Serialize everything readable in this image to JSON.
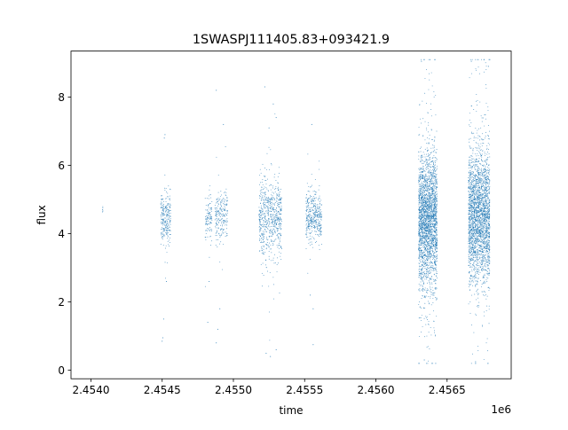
{
  "chart_data": {
    "type": "scatter",
    "title": "1SWASPJ111405.83+093421.9",
    "xlabel": "time",
    "ylabel": "flux",
    "x_offset_label": "1e6",
    "x_ticks": [
      {
        "value": 2454000,
        "label": "2.4540"
      },
      {
        "value": 2454500,
        "label": "2.4545"
      },
      {
        "value": 2455000,
        "label": "2.4550"
      },
      {
        "value": 2455500,
        "label": "2.4555"
      },
      {
        "value": 2456000,
        "label": "2.4560"
      },
      {
        "value": 2456500,
        "label": "2.4565"
      }
    ],
    "y_ticks": [
      {
        "value": 0,
        "label": "0"
      },
      {
        "value": 2,
        "label": "2"
      },
      {
        "value": 4,
        "label": "4"
      },
      {
        "value": 6,
        "label": "6"
      },
      {
        "value": 8,
        "label": "8"
      }
    ],
    "xlim": [
      2453860,
      2456950
    ],
    "ylim": [
      -0.25,
      9.35
    ],
    "grid": false,
    "marker_color": "#1f77b4",
    "series": [
      {
        "clusters": [
          {
            "x": [
              2454080,
              2454085
            ],
            "center": 4.68,
            "spread": 0.08,
            "min": 4.55,
            "max": 4.8,
            "count": 6,
            "outliers": []
          },
          {
            "x": [
              2454490,
              2454560
            ],
            "center": 4.45,
            "spread": 0.38,
            "min": 0.8,
            "max": 7.0,
            "count": 260,
            "outliers": [
              [
                2454520,
                6.9
              ],
              [
                2454515,
                6.8
              ],
              [
                2454510,
                1.5
              ],
              [
                2454505,
                0.95
              ],
              [
                2454500,
                0.85
              ],
              [
                2454530,
                2.6
              ]
            ]
          },
          {
            "x": [
              2454800,
              2454850
            ],
            "center": 4.45,
            "spread": 0.3,
            "min": 1.3,
            "max": 5.4,
            "count": 110,
            "outliers": [
              [
                2454830,
                2.6
              ],
              [
                2454820,
                1.4
              ]
            ]
          },
          {
            "x": [
              2454870,
              2454960
            ],
            "center": 4.5,
            "spread": 0.33,
            "min": 0.8,
            "max": 8.2,
            "count": 220,
            "outliers": [
              [
                2454880,
                8.2
              ],
              [
                2454930,
                7.2
              ],
              [
                2454905,
                1.8
              ],
              [
                2454880,
                0.8
              ],
              [
                2454890,
                1.2
              ]
            ]
          },
          {
            "x": [
              2455180,
              2455340
            ],
            "center": 4.45,
            "spread": 0.55,
            "min": 0.35,
            "max": 8.6,
            "count": 700,
            "outliers": [
              [
                2455220,
                8.3
              ],
              [
                2455280,
                7.8
              ],
              [
                2455300,
                7.4
              ],
              [
                2455250,
                7.1
              ],
              [
                2455230,
                0.5
              ],
              [
                2455260,
                0.4
              ],
              [
                2455300,
                0.6
              ]
            ]
          },
          {
            "x": [
              2455510,
              2455620
            ],
            "center": 4.5,
            "spread": 0.35,
            "min": 0.7,
            "max": 7.2,
            "count": 420,
            "outliers": [
              [
                2455550,
                7.2
              ],
              [
                2455560,
                1.8
              ],
              [
                2455560,
                0.75
              ],
              [
                2455540,
                2.2
              ]
            ]
          },
          {
            "x": [
              2456300,
              2456430
            ],
            "center": 4.4,
            "spread": 0.95,
            "min": 0.2,
            "max": 9.1,
            "count": 2600,
            "outliers": [
              [
                2456320,
                9.05
              ],
              [
                2456380,
                9.1
              ],
              [
                2456420,
                0.2
              ],
              [
                2456340,
                0.3
              ]
            ]
          },
          {
            "x": [
              2456650,
              2456800
            ],
            "center": 4.5,
            "spread": 0.95,
            "min": 0.2,
            "max": 9.1,
            "count": 2600,
            "outliers": [
              [
                2456670,
                9.05
              ],
              [
                2456760,
                9.1
              ],
              [
                2456790,
                8.9
              ],
              [
                2456700,
                0.25
              ]
            ]
          }
        ]
      }
    ]
  }
}
